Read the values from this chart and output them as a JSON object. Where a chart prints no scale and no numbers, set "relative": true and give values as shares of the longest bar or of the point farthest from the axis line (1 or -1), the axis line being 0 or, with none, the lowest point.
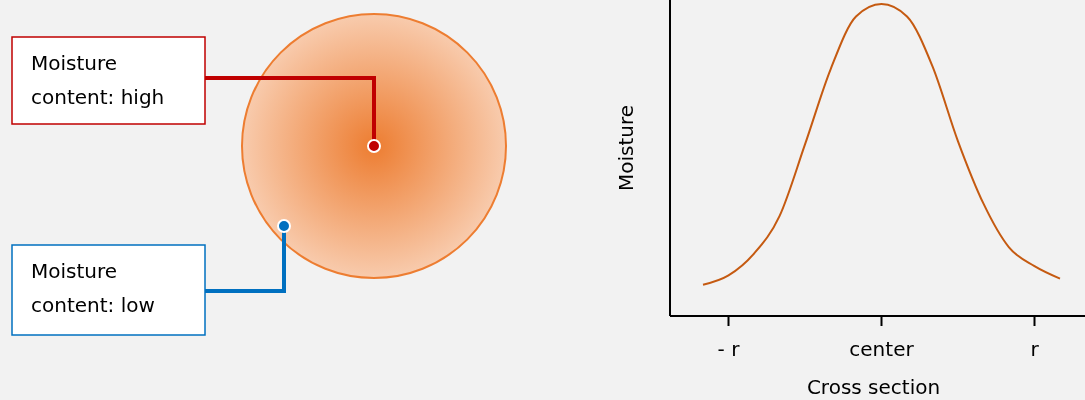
{
  "chart_data": {
    "type": "line",
    "relative": true,
    "xlabel": "Cross section",
    "ylabel": "Moisture",
    "categories": [
      null,
      "- r",
      null,
      null,
      null,
      null,
      null,
      "center",
      null,
      null,
      null,
      null,
      null,
      "r",
      null
    ],
    "series": [
      {
        "color": "#c55a11",
        "values": [
          0.1,
          0.13,
          0.2,
          0.32,
          0.55,
          0.79,
          0.96,
          1,
          0.96,
          0.8,
          0.56,
          0.36,
          0.22,
          0.16,
          0.12
        ]
      }
    ],
    "annotations": [
      "Moisture content: high",
      "Moisture content: low"
    ]
  }
}
